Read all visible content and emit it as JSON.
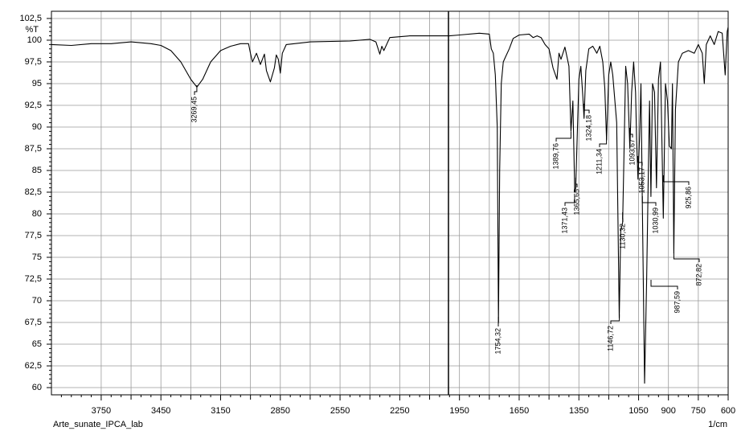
{
  "chart_data": {
    "type": "line",
    "y_axis_label": "%T",
    "x_axis_label": "1/cm",
    "sample_name": "Arte_sunate_IPCA_lab",
    "xlim": [
      4000,
      600
    ],
    "ylim": [
      59.17,
      103.33
    ],
    "grid": true,
    "xticks": [
      3750,
      3450,
      3150,
      2850,
      2550,
      2250,
      1950,
      1650,
      1350,
      1050,
      900,
      750,
      600
    ],
    "yticks": [
      {
        "value": 102.5,
        "label": "102,5"
      },
      100,
      {
        "value": 97.5,
        "label": "97,5"
      },
      95,
      {
        "value": 92.5,
        "label": "92,5"
      },
      90,
      {
        "value": 87.5,
        "label": "87,5"
      },
      85,
      {
        "value": 82.5,
        "label": "82,5"
      },
      80,
      {
        "value": 77.5,
        "label": "77,5"
      },
      75,
      {
        "value": 72.5,
        "label": "72,5"
      },
      70,
      {
        "value": 67.5,
        "label": "67,5"
      },
      65,
      {
        "value": 62.5,
        "label": "62,5"
      },
      60
    ],
    "series": [
      {
        "color": "#000000",
        "x": [
          4000,
          3900,
          3800,
          3700,
          3600,
          3500,
          3450,
          3400,
          3350,
          3300,
          3269,
          3240,
          3200,
          3150,
          3100,
          3050,
          3010,
          3000,
          2990,
          2970,
          2950,
          2930,
          2920,
          2900,
          2880,
          2870,
          2860,
          2850,
          2840,
          2820,
          2700,
          2500,
          2400,
          2370,
          2350,
          2340,
          2330,
          2300,
          2200,
          2100,
          2000,
          1950,
          1850,
          1800,
          1790,
          1780,
          1770,
          1760,
          1754,
          1748,
          1740,
          1730,
          1720,
          1700,
          1680,
          1650,
          1600,
          1580,
          1560,
          1540,
          1520,
          1500,
          1480,
          1460,
          1450,
          1440,
          1420,
          1400,
          1390,
          1380,
          1371,
          1366,
          1350,
          1340,
          1330,
          1324,
          1315,
          1300,
          1280,
          1260,
          1245,
          1230,
          1220,
          1211,
          1200,
          1190,
          1180,
          1160,
          1147,
          1140,
          1130,
          1125,
          1115,
          1105,
          1094,
          1085,
          1075,
          1065,
          1060,
          1053,
          1045,
          1038,
          1031,
          1020,
          1010,
          1000,
          995,
          988,
          980,
          970,
          960,
          950,
          940,
          926,
          915,
          905,
          895,
          885,
          880,
          873,
          865,
          850,
          830,
          800,
          770,
          750,
          730,
          720,
          710,
          690,
          670,
          650,
          630,
          615,
          605,
          600
        ],
        "values": [
          99.5,
          99.4,
          99.6,
          99.6,
          99.8,
          99.6,
          99.4,
          98.8,
          97.5,
          95.5,
          94.6,
          95.5,
          97.5,
          98.8,
          99.3,
          99.6,
          99.6,
          98.5,
          97.5,
          98.5,
          97.2,
          98.4,
          96.5,
          95.2,
          96.8,
          98.3,
          97.8,
          96.2,
          98.5,
          99.5,
          99.8,
          99.9,
          100.1,
          99.8,
          98.4,
          99.3,
          98.8,
          100.3,
          100.5,
          100.5,
          100.5,
          100.6,
          100.8,
          100.7,
          99,
          98.5,
          96,
          90,
          67.5,
          85,
          95,
          97.5,
          98,
          99,
          100.2,
          100.6,
          100.7,
          100.3,
          100.5,
          100.3,
          99.5,
          99,
          96.8,
          95.5,
          98.5,
          97.8,
          99.2,
          97,
          89.5,
          93,
          82.5,
          83,
          95.5,
          97,
          93.5,
          91,
          96.5,
          99,
          99.3,
          98.5,
          99.3,
          97.5,
          94.5,
          88.5,
          96,
          97.5,
          96,
          90.5,
          68,
          78,
          79,
          85,
          97,
          95,
          87.5,
          94,
          97.5,
          94,
          88.5,
          84,
          89,
          95,
          80.5,
          60.5,
          72,
          86,
          93,
          82,
          95,
          94,
          83,
          95.5,
          97.5,
          79.5,
          95,
          93,
          87.8,
          87.5,
          95,
          75.5,
          92,
          97.5,
          98.5,
          98.8,
          98.5,
          99.5,
          98.5,
          95,
          99.5,
          100.5,
          99.5,
          101,
          100.8,
          96,
          101,
          101.5
        ]
      }
    ],
    "annotations": [
      {
        "text": "3269,45",
        "x": 3269.45
      },
      {
        "text": "1754,32",
        "x": 1754.32
      },
      {
        "text": "1389,76",
        "x": 1389.76
      },
      {
        "text": "1371,43",
        "x": 1371.43
      },
      {
        "text": "1365,65",
        "x": 1365.65
      },
      {
        "text": "1324,18",
        "x": 1324.18
      },
      {
        "text": "1211,34",
        "x": 1211.34
      },
      {
        "text": "1146,72",
        "x": 1146.72
      },
      {
        "text": "1130,32",
        "x": 1130.32
      },
      {
        "text": "1093,67",
        "x": 1093.67
      },
      {
        "text": "1053,17",
        "x": 1053.17
      },
      {
        "text": "1030,99",
        "x": 1030.99
      },
      {
        "text": "987,59",
        "x": 987.59
      },
      {
        "text": "925,86",
        "x": 925.86
      },
      {
        "text": "872,82",
        "x": 872.82
      }
    ]
  }
}
